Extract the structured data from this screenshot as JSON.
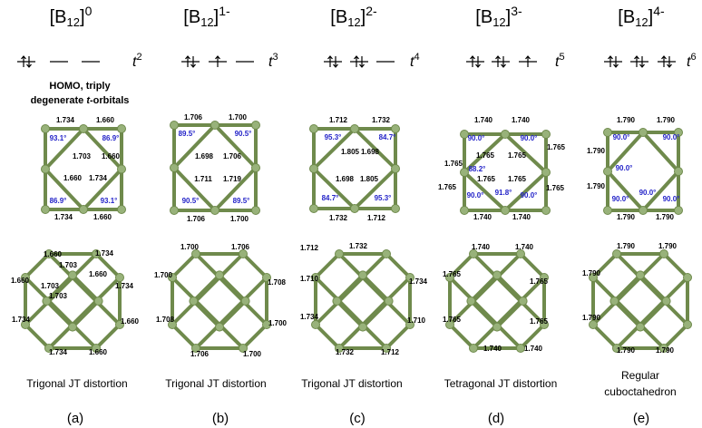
{
  "note": {
    "line1": "HOMO, triply",
    "line2_start": "degenerate ",
    "line2_italic": "t",
    "line2_end": "-orbitals"
  },
  "columns": [
    {
      "title": {
        "open": "[B",
        "sub": "12",
        "close": "]",
        "charge": "0"
      },
      "orbital_occupancy": [
        2,
        0,
        0
      ],
      "orbital_label": {
        "symbol": "t",
        "electrons": "2"
      },
      "top_bond_lengths": [
        "1.734",
        "1.660",
        "1.703",
        "1.660",
        "1.660",
        "1.734",
        "1.734",
        "1.660"
      ],
      "top_angles": [
        "93.1°",
        "86.9°",
        "86.9°",
        "93.1°"
      ],
      "bottom_bond_lengths": [
        "1.660",
        "1.734",
        "1.703",
        "1.660",
        "1.660",
        "1.703",
        "1.734",
        "1.703",
        "1.734",
        "1.660",
        "1.734",
        "1.660"
      ],
      "caption": [
        "Trigonal JT distortion"
      ],
      "panel": "(a)"
    },
    {
      "title": {
        "open": "[B",
        "sub": "12",
        "close": "]",
        "charge": "1-"
      },
      "orbital_occupancy": [
        2,
        1,
        0
      ],
      "orbital_label": {
        "symbol": "t",
        "electrons": "3"
      },
      "top_bond_lengths": [
        "1.706",
        "1.700",
        "1.698",
        "1.706",
        "1.711",
        "1.719",
        "1.706",
        "1.700"
      ],
      "top_angles": [
        "89.5°",
        "90.5°",
        "90.5°",
        "89.5°"
      ],
      "bottom_bond_lengths": [
        "1.700",
        "1.706",
        "1.700",
        "1.708",
        "1.708",
        "1.700",
        "1.706",
        "1.700"
      ],
      "caption": [
        "Trigonal JT distortion"
      ],
      "panel": "(b)"
    },
    {
      "title": {
        "open": "[B",
        "sub": "12",
        "close": "]",
        "charge": "2-"
      },
      "orbital_occupancy": [
        2,
        2,
        0
      ],
      "orbital_label": {
        "symbol": "t",
        "electrons": "4"
      },
      "top_bond_lengths": [
        "1.712",
        "1.732",
        "1.805",
        "1.698",
        "1.698",
        "1.805",
        "1.732",
        "1.712"
      ],
      "top_angles": [
        "95.3°",
        "84.7°",
        "84.7°",
        "95.3°"
      ],
      "bottom_bond_lengths": [
        "1.712",
        "1.732",
        "1.710",
        "1.734",
        "1.734",
        "1.710",
        "1.732",
        "1.712"
      ],
      "caption": [
        "Trigonal JT distortion"
      ],
      "panel": "(c)"
    },
    {
      "title": {
        "open": "[B",
        "sub": "12",
        "close": "]",
        "charge": "3-"
      },
      "orbital_occupancy": [
        2,
        2,
        1
      ],
      "orbital_label": {
        "symbol": "t",
        "electrons": "5"
      },
      "top_bond_lengths": [
        "1.740",
        "1.740",
        "1.765",
        "1.765",
        "1.765",
        "1.765",
        "1.765",
        "1.765",
        "1.765",
        "1.765",
        "1.740",
        "1.740"
      ],
      "top_angles": [
        "90.0°",
        "90.0°",
        "88.2°",
        "90.0°",
        "91.8°",
        "90.0°"
      ],
      "bottom_bond_lengths": [
        "1.740",
        "1.740",
        "1.765",
        "1.765",
        "1.765",
        "1.765",
        "1.740",
        "1.740"
      ],
      "caption": [
        "Tetragonal JT distortion"
      ],
      "panel": "(d)"
    },
    {
      "title": {
        "open": "[B",
        "sub": "12",
        "close": "]",
        "charge": "4-"
      },
      "orbital_occupancy": [
        2,
        2,
        2
      ],
      "orbital_label": {
        "symbol": "t",
        "electrons": "6"
      },
      "top_bond_lengths": [
        "1.790",
        "1.790",
        "1.790",
        "1.790",
        "1.790",
        "1.790"
      ],
      "top_angles": [
        "90.0°",
        "90.0°",
        "90.0°",
        "90.0°",
        "90.0°",
        "90.0°"
      ],
      "bottom_bond_lengths": [
        "1.790",
        "1.790",
        "1.790",
        "1.790",
        "1.790",
        "1.790"
      ],
      "caption": [
        "Regular",
        "cuboctahedron"
      ],
      "panel": "(e)"
    }
  ]
}
